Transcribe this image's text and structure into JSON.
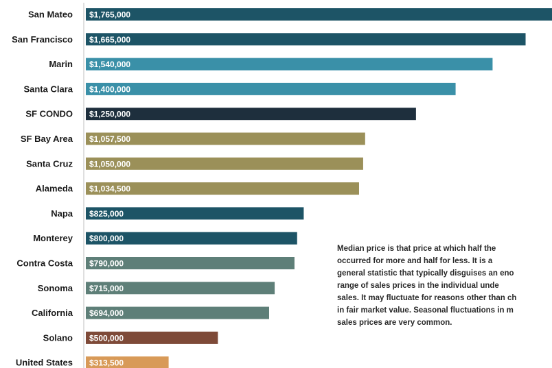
{
  "chart_data": {
    "type": "bar",
    "orientation": "horizontal",
    "categories": [
      "San Mateo",
      "San Francisco",
      "Marin",
      "Santa Clara",
      "SF CONDO",
      "SF Bay Area",
      "Santa Cruz",
      "Alameda",
      "Napa",
      "Monterey",
      "Contra Costa",
      "Sonoma",
      "California",
      "Solano",
      "United States"
    ],
    "values": [
      1765000,
      1665000,
      1540000,
      1400000,
      1250000,
      1057500,
      1050000,
      1034500,
      825000,
      800000,
      790000,
      715000,
      694000,
      500000,
      313500
    ],
    "value_labels": [
      "$1,765,000",
      "$1,665,000",
      "$1,540,000",
      "$1,400,000",
      "$1,250,000",
      "$1,057,500",
      "$1,050,000",
      "$1,034,500",
      "$825,000",
      "$800,000",
      "$790,000",
      "$715,000",
      "$694,000",
      "$500,000",
      "$313,500"
    ],
    "colors": [
      "#1d5466",
      "#1d5466",
      "#3a90a8",
      "#3a90a8",
      "#1e2f3d",
      "#9b9059",
      "#9b9059",
      "#9b9059",
      "#1d5466",
      "#1d5466",
      "#5e7f78",
      "#5e7f78",
      "#5e7f78",
      "#7e4a38",
      "#d89a58"
    ],
    "xlim": [
      0,
      1765000
    ],
    "grid": false,
    "legend": "none",
    "title": "",
    "xlabel": "",
    "ylabel": ""
  },
  "note_lines": [
    "Median price is that price at which half the",
    "occurred for more and half for less. It is a",
    "general statistic that typically disguises an eno",
    "range of sales prices in the individual unde",
    "sales. It may fluctuate for reasons other than ch",
    "in fair market value. Seasonal fluctuations in m",
    "sales prices are very common."
  ]
}
